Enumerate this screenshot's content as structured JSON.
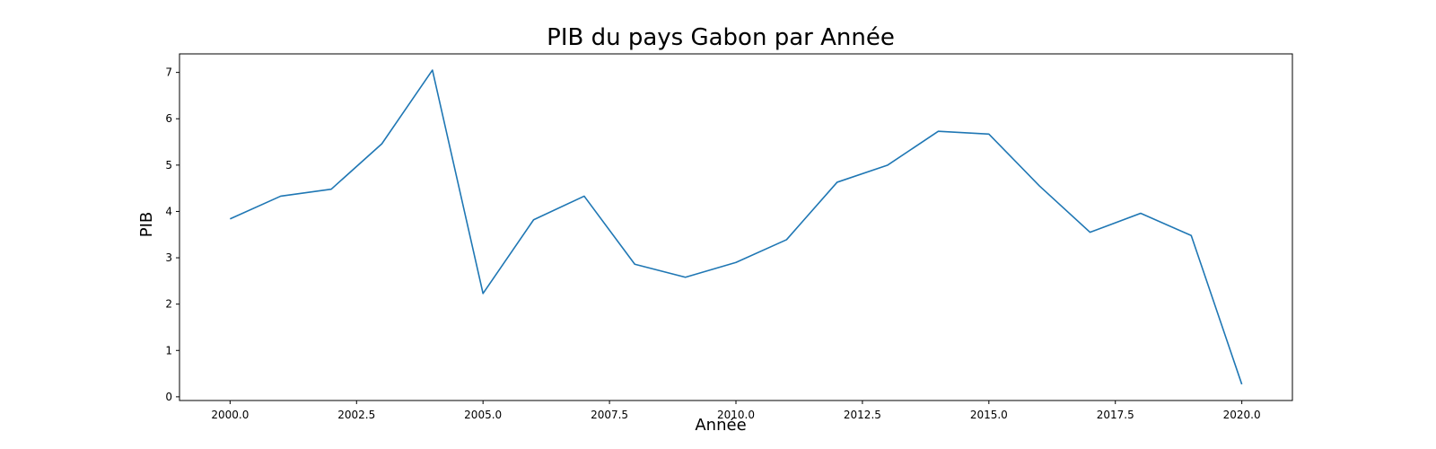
{
  "chart_data": {
    "type": "line",
    "title": "PIB du pays Gabon par Année",
    "xlabel": "Année",
    "ylabel": "PIB",
    "xlim": [
      1999,
      2021
    ],
    "ylim": [
      -0.08,
      7.4
    ],
    "x_ticks": [
      2000,
      2002.5,
      2005,
      2007.5,
      2010,
      2012.5,
      2015,
      2017.5,
      2020
    ],
    "x_tick_labels": [
      "2000.0",
      "2002.5",
      "2005.0",
      "2007.5",
      "2010.0",
      "2012.5",
      "2015.0",
      "2017.5",
      "2020.0"
    ],
    "y_ticks": [
      0,
      1,
      2,
      3,
      4,
      5,
      6,
      7
    ],
    "y_tick_labels": [
      "0",
      "1",
      "2",
      "3",
      "4",
      "5",
      "6",
      "7"
    ],
    "grid": false,
    "line_color": "#1f77b4",
    "series": [
      {
        "x": [
          2000,
          2001,
          2002,
          2003,
          2004,
          2005,
          2006,
          2007,
          2008,
          2009,
          2010,
          2011,
          2012,
          2013,
          2014,
          2015,
          2016,
          2017,
          2018,
          2019,
          2020
        ],
        "values": [
          3.84,
          4.33,
          4.48,
          5.46,
          7.05,
          2.23,
          3.82,
          4.33,
          2.86,
          2.58,
          2.9,
          3.39,
          4.63,
          5.0,
          5.73,
          5.67,
          4.55,
          3.55,
          3.96,
          3.48,
          0.27
        ]
      }
    ]
  }
}
